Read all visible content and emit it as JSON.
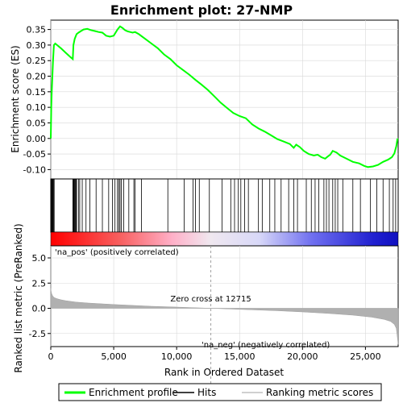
{
  "chart_data": {
    "type": "line",
    "title": "Enrichment plot: 27-NMP",
    "top_panel": {
      "ylabel": "Enrichment score (ES)",
      "ylim": [
        -0.13,
        0.38
      ],
      "yticks": [
        -0.1,
        -0.05,
        0.0,
        0.05,
        0.1,
        0.15,
        0.2,
        0.25,
        0.3,
        0.35
      ],
      "ytick_labels": [
        "-0.10",
        "-0.05",
        "0.00",
        "0.05",
        "0.10",
        "0.15",
        "0.20",
        "0.25",
        "0.30",
        "0.35"
      ],
      "series": [
        {
          "name": "Enrichment profile",
          "color": "#00ff00",
          "x": [
            0,
            40,
            80,
            130,
            180,
            250,
            350,
            500,
            800,
            1200,
            1600,
            1750,
            1800,
            1900,
            2050,
            2200,
            2400,
            2600,
            2900,
            3200,
            3500,
            3800,
            4100,
            4400,
            4700,
            5000,
            5300,
            5500,
            5700,
            5900,
            6100,
            6300,
            6500,
            6700,
            7000,
            7500,
            8000,
            8500,
            9000,
            9500,
            10000,
            10500,
            11000,
            11500,
            12000,
            12500,
            13000,
            13500,
            14000,
            14500,
            15000,
            15500,
            16000,
            16500,
            17000,
            17500,
            18000,
            18500,
            19000,
            19300,
            19500,
            19800,
            20100,
            20500,
            20900,
            21200,
            21500,
            21800,
            22000,
            22200,
            22400,
            22700,
            23000,
            23500,
            24000,
            24500,
            24900,
            25200,
            25600,
            26000,
            26400,
            26800,
            27100,
            27300,
            27450,
            27550
          ],
          "y": [
            0.0,
            0.1,
            0.15,
            0.2,
            0.25,
            0.3,
            0.305,
            0.3,
            0.29,
            0.275,
            0.26,
            0.255,
            0.3,
            0.32,
            0.335,
            0.34,
            0.345,
            0.35,
            0.352,
            0.348,
            0.345,
            0.342,
            0.34,
            0.33,
            0.327,
            0.33,
            0.35,
            0.36,
            0.355,
            0.348,
            0.344,
            0.342,
            0.34,
            0.342,
            0.335,
            0.32,
            0.305,
            0.29,
            0.27,
            0.255,
            0.235,
            0.22,
            0.205,
            0.188,
            0.172,
            0.155,
            0.135,
            0.115,
            0.098,
            0.082,
            0.072,
            0.065,
            0.045,
            0.032,
            0.022,
            0.01,
            -0.002,
            -0.01,
            -0.018,
            -0.03,
            -0.02,
            -0.028,
            -0.04,
            -0.05,
            -0.055,
            -0.052,
            -0.06,
            -0.065,
            -0.058,
            -0.052,
            -0.04,
            -0.045,
            -0.055,
            -0.065,
            -0.075,
            -0.08,
            -0.088,
            -0.092,
            -0.09,
            -0.085,
            -0.075,
            -0.068,
            -0.06,
            -0.048,
            -0.025,
            0.0
          ]
        }
      ]
    },
    "hits_panel": {
      "hit_ranks": [
        30,
        60,
        100,
        140,
        180,
        220,
        270,
        1750,
        1800,
        1850,
        1900,
        1950,
        2000,
        2050,
        2200,
        2300,
        2500,
        2800,
        3100,
        3600,
        4100,
        4600,
        4900,
        5100,
        5300,
        5400,
        5500,
        5600,
        5800,
        6200,
        6600,
        6700,
        7200,
        9300,
        10600,
        11300,
        11500,
        11800,
        12600,
        13600,
        14300,
        14600,
        14900,
        15100,
        15400,
        15700,
        16500,
        16800,
        17400,
        17800,
        18300,
        18900,
        19300,
        19600,
        20300,
        20700,
        21000,
        21300,
        21700,
        21900,
        22100,
        22400,
        22600,
        22800,
        23200,
        24000,
        24600,
        25400,
        25900,
        26400,
        26900,
        27200,
        27400
      ]
    },
    "bottom_panel": {
      "ylabel": "Ranked list metric (PreRanked)",
      "xlabel": "Rank in Ordered Dataset",
      "ylim": [
        -3.8,
        6.2
      ],
      "yticks": [
        -2.5,
        0.0,
        2.5,
        5.0
      ],
      "ytick_labels": [
        "-2.5",
        "0.0",
        "2.5",
        "5.0"
      ],
      "xticks": [
        0,
        5000,
        10000,
        15000,
        20000,
        25000
      ],
      "xtick_labels": [
        "0",
        "5,000",
        "10,000",
        "15,000",
        "20,000",
        "25,000"
      ],
      "xlim": [
        0,
        27600
      ],
      "metric_curve": {
        "x": [
          0,
          20,
          60,
          120,
          200,
          300,
          500,
          800,
          1200,
          2000,
          3000,
          5000,
          8000,
          10000,
          12715,
          15000,
          18000,
          20000,
          22000,
          24000,
          25500,
          26500,
          27000,
          27300,
          27450,
          27550,
          27600
        ],
        "y": [
          2.0,
          1.75,
          1.5,
          1.3,
          1.15,
          1.05,
          0.95,
          0.85,
          0.75,
          0.62,
          0.52,
          0.38,
          0.2,
          0.12,
          0.0,
          -0.1,
          -0.24,
          -0.36,
          -0.5,
          -0.68,
          -0.88,
          -1.1,
          -1.3,
          -1.6,
          -2.0,
          -3.0,
          -3.6
        ]
      },
      "annotations": [
        {
          "text": "Zero cross at 12715",
          "x": 12715
        },
        {
          "text": "'na_pos' (positively correlated)",
          "color": "#cc0000"
        },
        {
          "text": "'na_neg' (negatively correlated)",
          "color": "#0000cc"
        }
      ]
    },
    "legend": {
      "placement": "bottom",
      "entries": [
        {
          "label": "Enrichment profile",
          "color": "#00ff00",
          "kind": "line"
        },
        {
          "label": "Hits",
          "color": "#000000",
          "kind": "line"
        },
        {
          "label": "Ranking metric scores",
          "color": "#c0c0c0",
          "kind": "line"
        }
      ]
    },
    "grid": true
  }
}
